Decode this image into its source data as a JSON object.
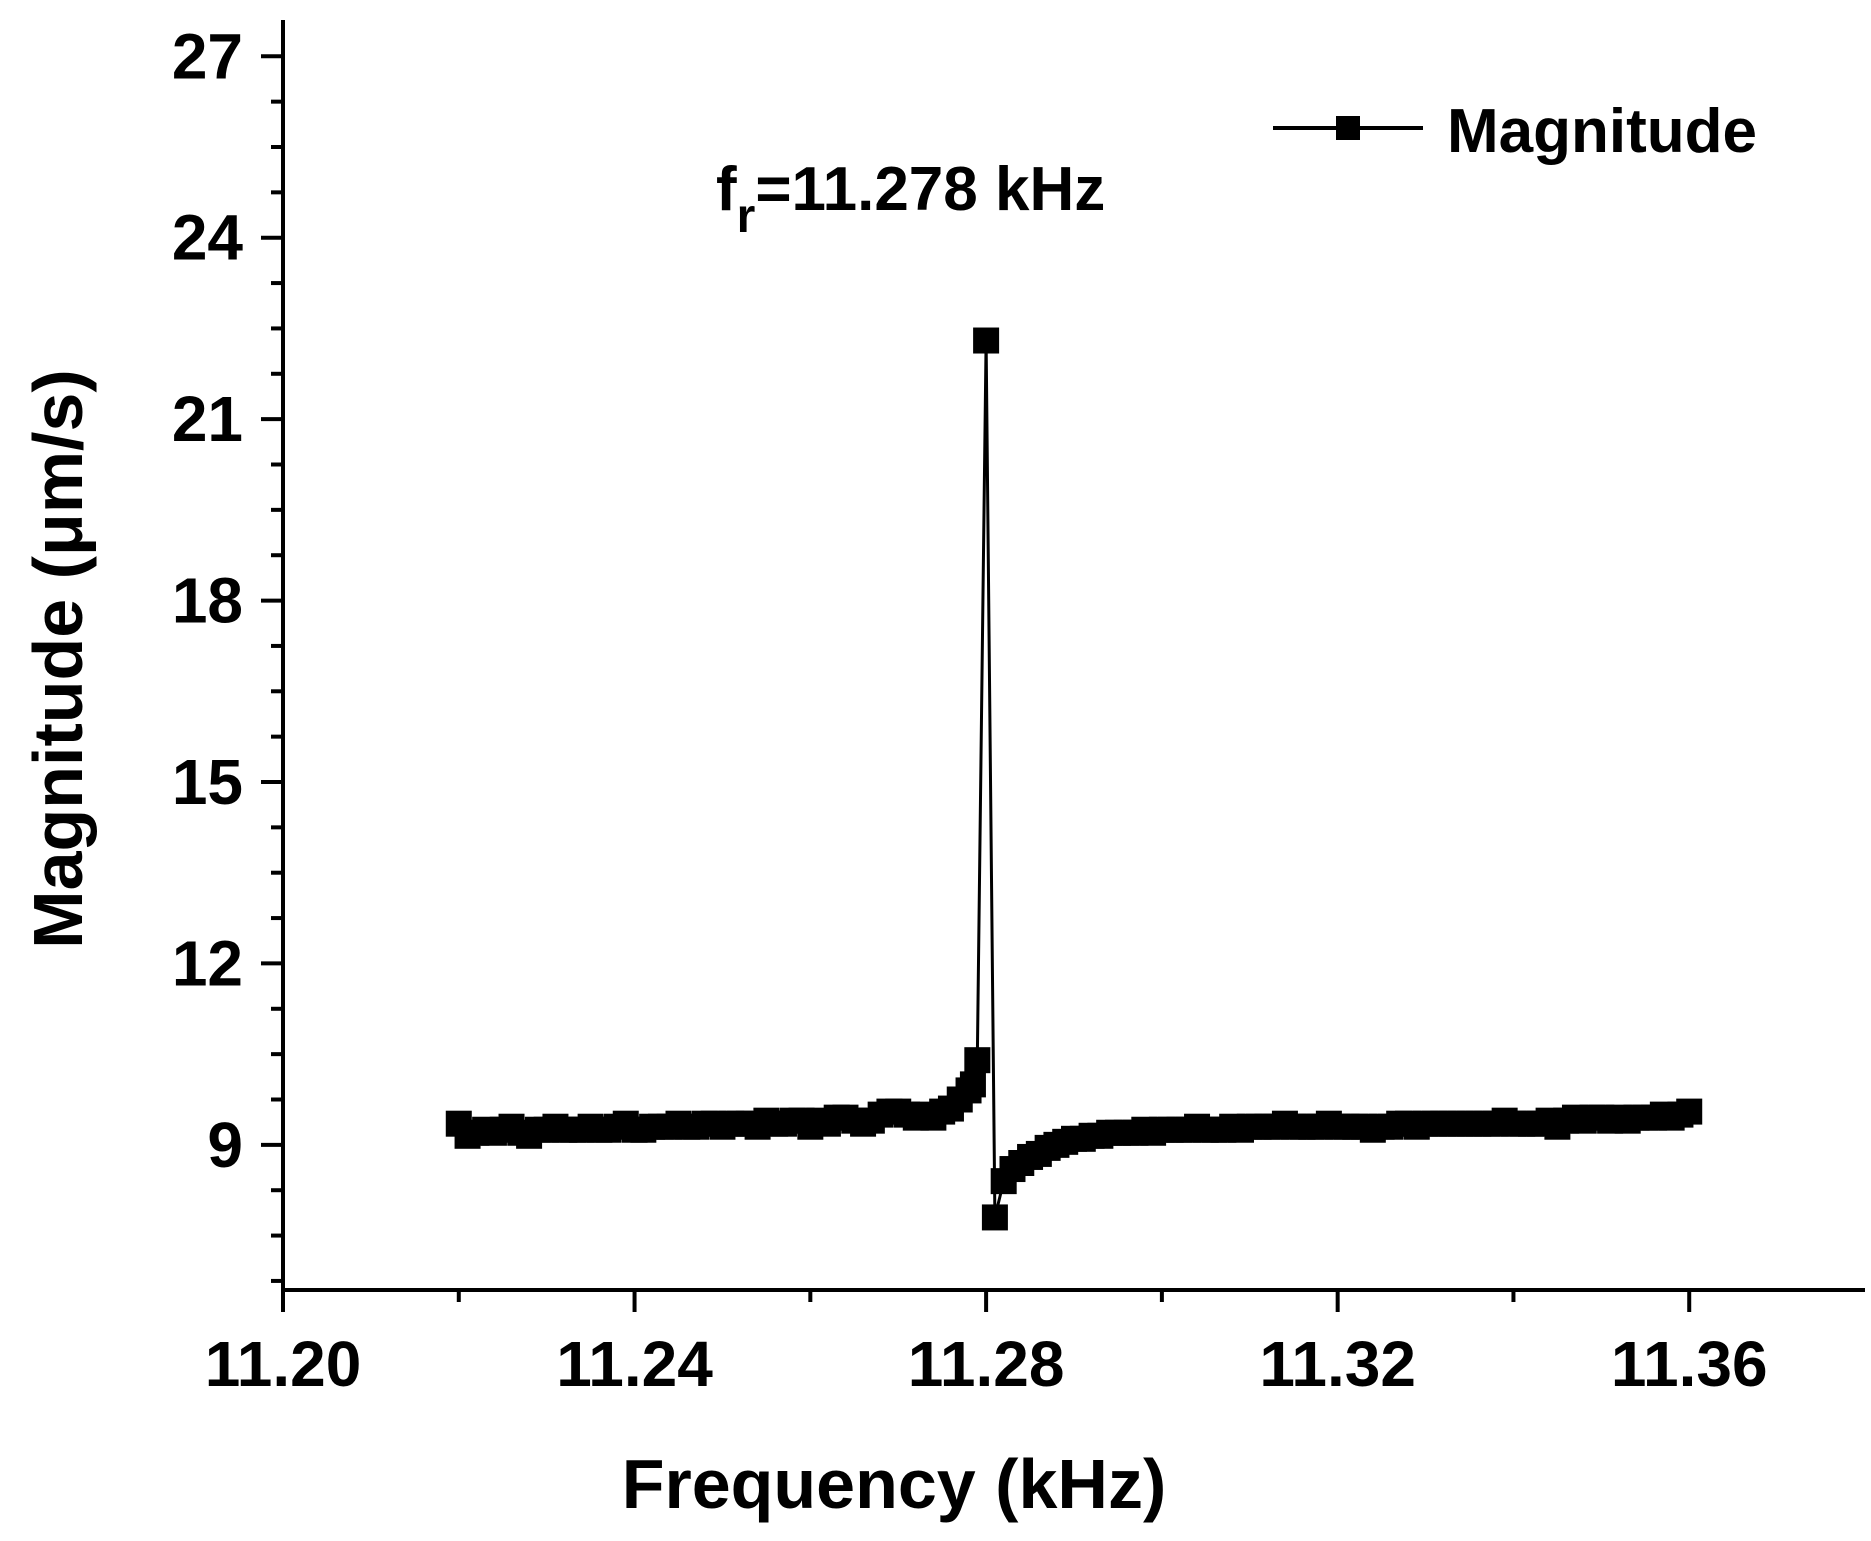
{
  "chart_data": {
    "type": "line",
    "xlabel": "Frequency (kHz)",
    "ylabel": "Magnitude (μm/s)",
    "xlim": [
      11.2,
      11.38
    ],
    "ylim": [
      6.6,
      27.6
    ],
    "xticks": [
      "11.20",
      "11.24",
      "11.28",
      "11.32",
      "11.36"
    ],
    "yticks": [
      "9",
      "12",
      "15",
      "18",
      "21",
      "24",
      "27"
    ],
    "annotation": {
      "prefix": "f",
      "subscript": "r",
      "suffix": "=11.278 kHz"
    },
    "legend": {
      "position": "top-right"
    },
    "grid": false,
    "series": [
      {
        "name": "Magnitude",
        "marker": "square",
        "color": "#000000",
        "x": [
          11.22,
          11.221,
          11.222,
          11.223,
          11.224,
          11.225,
          11.226,
          11.227,
          11.228,
          11.229,
          11.23,
          11.231,
          11.232,
          11.233,
          11.234,
          11.235,
          11.236,
          11.237,
          11.238,
          11.239,
          11.24,
          11.241,
          11.242,
          11.243,
          11.244,
          11.245,
          11.246,
          11.247,
          11.248,
          11.249,
          11.25,
          11.251,
          11.252,
          11.253,
          11.254,
          11.255,
          11.256,
          11.257,
          11.258,
          11.259,
          11.26,
          11.261,
          11.262,
          11.263,
          11.264,
          11.265,
          11.266,
          11.267,
          11.268,
          11.269,
          11.27,
          11.271,
          11.272,
          11.273,
          11.274,
          11.275,
          11.276,
          11.277,
          11.278,
          11.2785,
          11.279,
          11.28,
          11.281,
          11.282,
          11.283,
          11.284,
          11.285,
          11.286,
          11.287,
          11.288,
          11.289,
          11.29,
          11.291,
          11.292,
          11.293,
          11.294,
          11.295,
          11.296,
          11.297,
          11.298,
          11.299,
          11.3,
          11.301,
          11.302,
          11.303,
          11.304,
          11.305,
          11.306,
          11.307,
          11.308,
          11.309,
          11.31,
          11.311,
          11.312,
          11.313,
          11.314,
          11.315,
          11.316,
          11.317,
          11.318,
          11.319,
          11.32,
          11.321,
          11.322,
          11.323,
          11.324,
          11.325,
          11.326,
          11.327,
          11.328,
          11.329,
          11.33,
          11.331,
          11.332,
          11.333,
          11.334,
          11.335,
          11.336,
          11.337,
          11.338,
          11.339,
          11.34,
          11.341,
          11.342,
          11.343,
          11.344,
          11.345,
          11.346,
          11.347,
          11.348,
          11.349,
          11.35,
          11.351,
          11.352,
          11.353,
          11.354,
          11.355,
          11.356,
          11.357,
          11.358,
          11.359,
          11.36
        ],
        "y": [
          9.35,
          9.15,
          9.2,
          9.25,
          9.2,
          9.25,
          9.3,
          9.2,
          9.15,
          9.25,
          9.25,
          9.3,
          9.25,
          9.25,
          9.25,
          9.3,
          9.25,
          9.25,
          9.3,
          9.35,
          9.25,
          9.25,
          9.3,
          9.3,
          9.3,
          9.35,
          9.3,
          9.3,
          9.35,
          9.35,
          9.3,
          9.35,
          9.35,
          9.35,
          9.3,
          9.4,
          9.35,
          9.35,
          9.4,
          9.4,
          9.3,
          9.4,
          9.35,
          9.45,
          9.45,
          9.4,
          9.35,
          9.4,
          9.5,
          9.55,
          9.55,
          9.5,
          9.45,
          9.5,
          9.45,
          9.55,
          9.6,
          9.75,
          9.9,
          10.0,
          10.4,
          22.3,
          7.8,
          8.4,
          8.6,
          8.7,
          8.8,
          8.85,
          8.95,
          9.0,
          9.05,
          9.1,
          9.1,
          9.15,
          9.15,
          9.2,
          9.2,
          9.2,
          9.2,
          9.25,
          9.2,
          9.25,
          9.25,
          9.25,
          9.25,
          9.3,
          9.25,
          9.25,
          9.25,
          9.3,
          9.25,
          9.3,
          9.3,
          9.3,
          9.3,
          9.35,
          9.3,
          9.3,
          9.3,
          9.3,
          9.35,
          9.3,
          9.3,
          9.3,
          9.3,
          9.25,
          9.3,
          9.3,
          9.35,
          9.35,
          9.3,
          9.35,
          9.35,
          9.35,
          9.35,
          9.35,
          9.35,
          9.35,
          9.35,
          9.35,
          9.4,
          9.35,
          9.35,
          9.35,
          9.35,
          9.4,
          9.3,
          9.4,
          9.45,
          9.4,
          9.45,
          9.45,
          9.4,
          9.45,
          9.4,
          9.45,
          9.45,
          9.45,
          9.5,
          9.45,
          9.5,
          9.55
        ]
      }
    ]
  }
}
